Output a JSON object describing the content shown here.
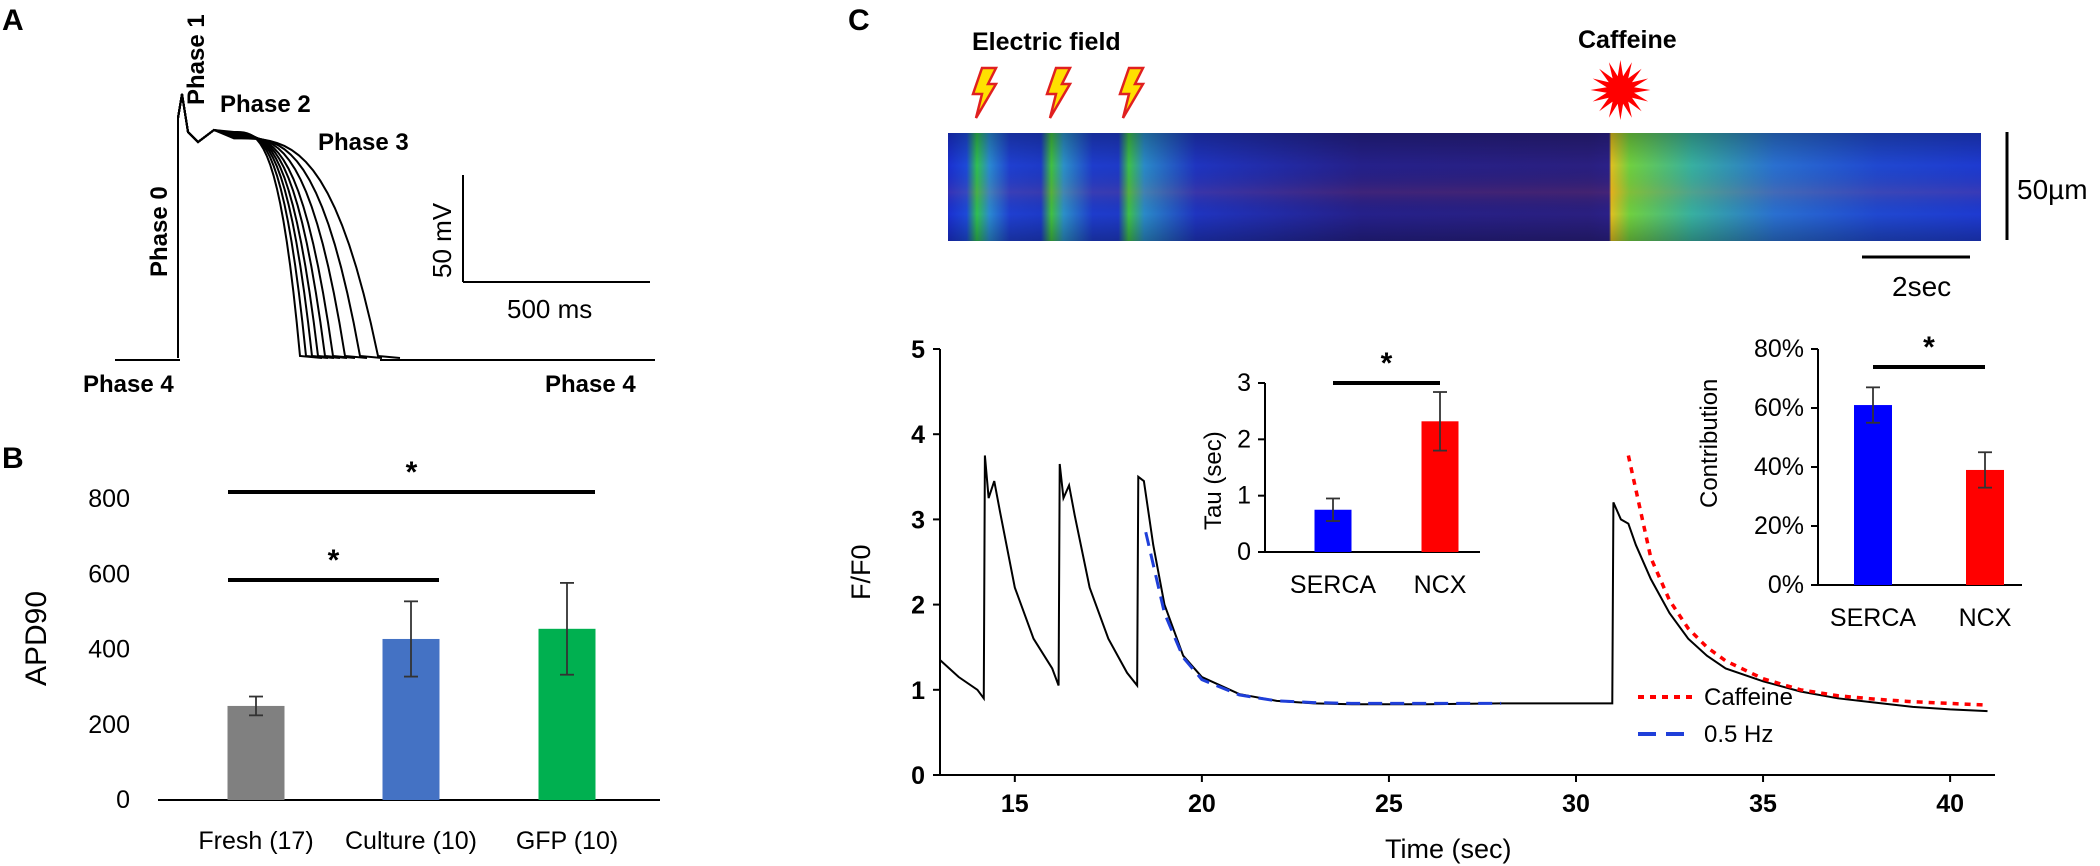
{
  "panels": {
    "a": "A",
    "b": "B",
    "c": "C"
  },
  "panel_a": {
    "phase1": "Phase 1",
    "phase2": "Phase 2",
    "phase3": "Phase 3",
    "phase0": "Phase 0",
    "phase4_left": "Phase 4",
    "phase4_right": "Phase 4",
    "scale_voltage": "50 mV",
    "scale_time": "500 ms"
  },
  "panel_c": {
    "stim_label": "Electric field",
    "caffeine_label": "Caffeine",
    "scale_space": "50µm",
    "scale_time": "2sec"
  },
  "chart_data": [
    {
      "id": "apd90",
      "type": "bar",
      "ylabel": "APD90",
      "ylim": [
        0,
        800
      ],
      "yticks": [
        "0",
        "200",
        "400",
        "600",
        "800"
      ],
      "categories": [
        "Fresh (17)",
        "Culture (10)",
        "GFP (10)"
      ],
      "values": [
        250,
        428,
        455
      ],
      "errors": [
        25,
        100,
        122
      ],
      "colors": [
        "#808080",
        "#4472c4",
        "#00b050"
      ],
      "significance": [
        {
          "from": 0,
          "to": 1,
          "label": "*"
        },
        {
          "from": 0,
          "to": 2,
          "label": "*"
        }
      ]
    },
    {
      "id": "ff0",
      "type": "line",
      "xlabel": "Time (sec)",
      "ylabel": "F/F0",
      "xlim": [
        13,
        41.2
      ],
      "ylim": [
        0,
        5
      ],
      "xticks": [
        "15",
        "20",
        "25",
        "30",
        "35",
        "40"
      ],
      "yticks": [
        "0",
        "1",
        "2",
        "3",
        "4",
        "5"
      ],
      "stim_times": [
        14.2,
        16.2,
        18.3
      ],
      "caffeine_time": 31.0,
      "legend": [
        "Caffeine",
        "0.5 Hz"
      ],
      "legend_colors": [
        "#ff0000",
        "#1f3fd9"
      ],
      "series": [
        {
          "name": "Trace",
          "x": [
            13.0,
            13.5,
            14.0,
            14.17,
            14.2,
            14.3,
            14.45,
            14.6,
            15.0,
            15.5,
            16.0,
            16.17,
            16.2,
            16.3,
            16.45,
            16.6,
            17.0,
            17.5,
            18.0,
            18.27,
            18.3,
            18.45,
            18.55,
            18.7,
            19.0,
            19.5,
            20.0,
            21.0,
            22.0,
            23.0,
            24.0,
            26.0,
            28.0,
            30.0,
            30.97,
            31.0,
            31.2,
            31.4,
            31.6,
            32.0,
            32.5,
            33.0,
            33.5,
            34.0,
            35.0,
            36.0,
            37.0,
            38.0,
            39.0,
            40.0,
            41.0
          ],
          "y": [
            1.35,
            1.15,
            1.0,
            0.9,
            3.75,
            3.25,
            3.45,
            3.1,
            2.2,
            1.6,
            1.25,
            1.05,
            3.65,
            3.25,
            3.4,
            3.05,
            2.2,
            1.6,
            1.2,
            1.05,
            3.5,
            3.45,
            3.15,
            2.7,
            2.0,
            1.4,
            1.15,
            0.95,
            0.87,
            0.84,
            0.83,
            0.83,
            0.84,
            0.84,
            0.84,
            3.2,
            3.0,
            2.95,
            2.7,
            2.3,
            1.9,
            1.6,
            1.4,
            1.25,
            1.1,
            0.98,
            0.9,
            0.85,
            0.8,
            0.77,
            0.75
          ]
        },
        {
          "name": "0.5 Hz",
          "x": [
            18.5,
            19.0,
            19.5,
            20.0,
            21.0,
            22.0,
            23.0,
            24.0,
            26.0,
            28.0
          ],
          "y": [
            2.85,
            1.9,
            1.38,
            1.12,
            0.94,
            0.87,
            0.85,
            0.84,
            0.84,
            0.84
          ]
        },
        {
          "name": "Caffeine",
          "x": [
            31.4,
            32.0,
            32.5,
            33.0,
            33.5,
            34.0,
            35.0,
            36.0,
            37.0,
            38.0,
            39.0,
            40.0,
            41.0
          ],
          "y": [
            3.75,
            2.55,
            2.05,
            1.72,
            1.5,
            1.34,
            1.13,
            1.0,
            0.93,
            0.89,
            0.86,
            0.84,
            0.82
          ]
        }
      ]
    },
    {
      "id": "tau",
      "type": "bar",
      "ylabel": "Tau (sec)",
      "ylim": [
        0,
        3
      ],
      "yticks": [
        "0",
        "1",
        "2",
        "3"
      ],
      "categories": [
        "SERCA",
        "NCX"
      ],
      "values": [
        0.75,
        2.32
      ],
      "errors": [
        0.2,
        0.52
      ],
      "colors": [
        "#0000ff",
        "#ff0000"
      ],
      "significance": [
        {
          "from": 0,
          "to": 1,
          "label": "*"
        }
      ]
    },
    {
      "id": "contribution",
      "type": "bar",
      "ylabel": "Contribution",
      "ylim": [
        0,
        80
      ],
      "yticks": [
        "0%",
        "20%",
        "40%",
        "60%",
        "80%"
      ],
      "categories": [
        "SERCA",
        "NCX"
      ],
      "values": [
        61,
        39
      ],
      "errors": [
        6,
        6
      ],
      "colors": [
        "#0000ff",
        "#ff0000"
      ],
      "significance": [
        {
          "from": 0,
          "to": 1,
          "label": "*"
        }
      ]
    }
  ]
}
